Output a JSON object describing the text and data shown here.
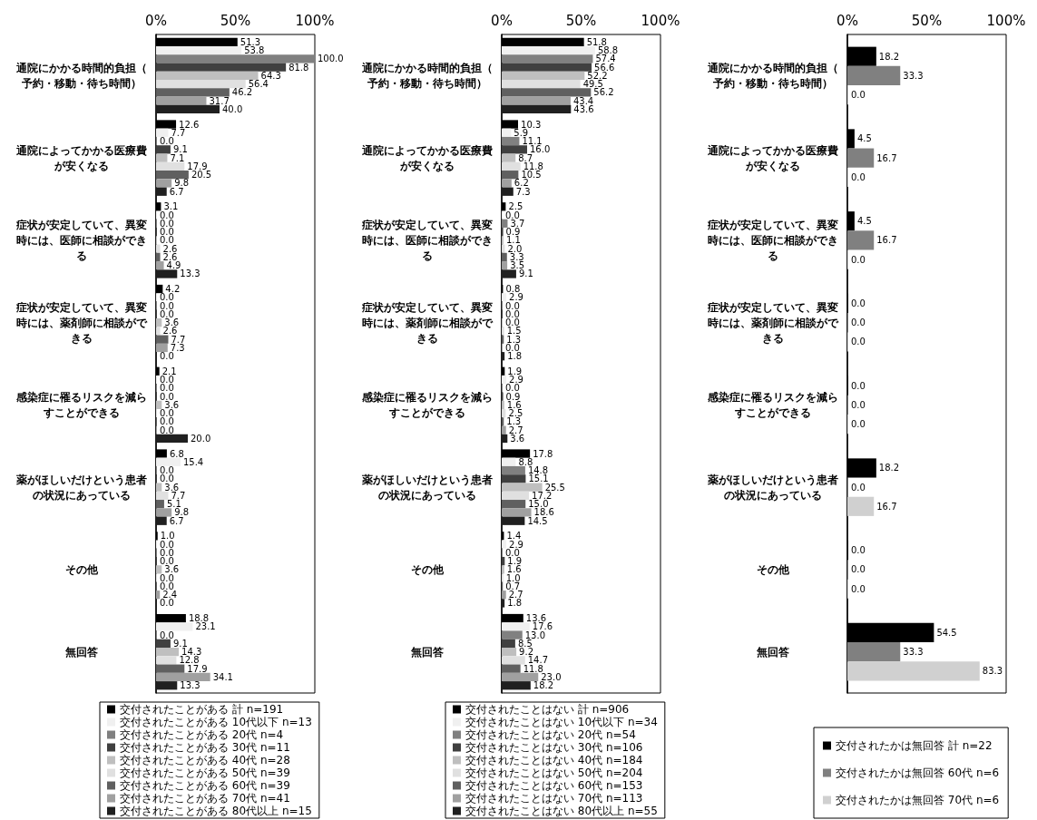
{
  "chart_data": [
    {
      "type": "bar",
      "orientation": "horizontal",
      "categories": [
        "通院にかかる時間的負担（予約・移動・待ち時間）",
        "通院によってかかる医療費が安くなる",
        "症状が安定していて、異変時には、医師に相談ができる",
        "症状が安定していて、異変時には、薬剤師に相談ができる",
        "感染症に罹るリスクを減らすことができる",
        "薬がほしいだけという患者の状況にあっている",
        "その他",
        "無回答"
      ],
      "xlim": [
        0,
        100
      ],
      "xticks": [
        {
          "value": 0,
          "label": "0%"
        },
        {
          "value": 50,
          "label": "50%"
        },
        {
          "value": 100,
          "label": "100%"
        }
      ],
      "grid": false,
      "legend": "bottom",
      "series": [
        {
          "name": "交付されたことがある 計 n=191",
          "color": "#000000",
          "values": [
            51.3,
            12.6,
            3.1,
            4.2,
            2.1,
            6.8,
            1.0,
            18.8
          ],
          "value_labels": [
            "51.3",
            "12.6",
            "3.1",
            "4.2",
            "2.1",
            "6.8",
            "1.0",
            "18.8"
          ]
        },
        {
          "name": "交付されたことがある 10代以下 n=13",
          "color": "#f0f0f0",
          "values": [
            53.8,
            7.7,
            0.0,
            0.0,
            0.0,
            15.4,
            0.0,
            23.1
          ],
          "value_labels": [
            "53.8",
            "7.7",
            "0.0",
            "0.0",
            "0.0",
            "15.4",
            "0.0",
            "23.1"
          ]
        },
        {
          "name": "交付されたことがある 20代 n=4",
          "color": "#808080",
          "values": [
            100.0,
            0.0,
            0.0,
            0.0,
            0.0,
            0.0,
            0.0,
            0.0
          ],
          "value_labels": [
            "100.0",
            "0.0",
            "0.0",
            "0.0",
            "0.0",
            "0.0",
            "0.0",
            "0.0"
          ]
        },
        {
          "name": "交付されたことがある 30代 n=11",
          "color": "#404040",
          "values": [
            81.8,
            9.1,
            0.0,
            0.0,
            0.0,
            0.0,
            0.0,
            9.1
          ],
          "value_labels": [
            "81.8",
            "9.1",
            "0.0",
            "0.0",
            "0.0",
            "0.0",
            "0.0",
            "9.1"
          ]
        },
        {
          "name": "交付されたことがある 40代 n=28",
          "color": "#bfbfbf",
          "values": [
            64.3,
            7.1,
            0.0,
            3.6,
            3.6,
            3.6,
            3.6,
            14.3
          ],
          "value_labels": [
            "64.3",
            "7.1",
            "0.0",
            "3.6",
            "3.6",
            "3.6",
            "3.6",
            "14.3"
          ]
        },
        {
          "name": "交付されたことがある 50代 n=39",
          "color": "#e0e0e0",
          "values": [
            56.4,
            17.9,
            2.6,
            2.6,
            0.0,
            7.7,
            0.0,
            12.8
          ],
          "value_labels": [
            "56.4",
            "17.9",
            "2.6",
            "2.6",
            "0.0",
            "7.7",
            "0.0",
            "12.8"
          ]
        },
        {
          "name": "交付されたことがある 60代 n=39",
          "color": "#606060",
          "values": [
            46.2,
            20.5,
            2.6,
            7.7,
            0.0,
            5.1,
            0.0,
            17.9
          ],
          "value_labels": [
            "46.2",
            "20.5",
            "2.6",
            "7.7",
            "0.0",
            "5.1",
            "0.0",
            "17.9"
          ]
        },
        {
          "name": "交付されたことがある 70代 n=41",
          "color": "#a0a0a0",
          "values": [
            31.7,
            9.8,
            4.9,
            7.3,
            0.0,
            9.8,
            2.4,
            34.1
          ],
          "value_labels": [
            "31.7",
            "9.8",
            "4.9",
            "7.3",
            "0.0",
            "9.8",
            "2.4",
            "34.1"
          ]
        },
        {
          "name": "交付されたことがある 80代以上 n=15",
          "color": "#202020",
          "values": [
            40.0,
            6.7,
            13.3,
            0.0,
            20.0,
            6.7,
            0.0,
            13.3
          ],
          "value_labels": [
            "40.0",
            "6.7",
            "13.3",
            "0.0",
            "20.0",
            "6.7",
            "0.0",
            "13.3"
          ]
        }
      ]
    },
    {
      "type": "bar",
      "orientation": "horizontal",
      "categories": [
        "通院にかかる時間的負担（予約・移動・待ち時間）",
        "通院によってかかる医療費が安くなる",
        "症状が安定していて、異変時には、医師に相談ができる",
        "症状が安定していて、異変時には、薬剤師に相談ができる",
        "感染症に罹るリスクを減らすことができる",
        "薬がほしいだけという患者の状況にあっている",
        "その他",
        "無回答"
      ],
      "xlim": [
        0,
        100
      ],
      "xticks": [
        {
          "value": 0,
          "label": "0%"
        },
        {
          "value": 50,
          "label": "50%"
        },
        {
          "value": 100,
          "label": "100%"
        }
      ],
      "grid": false,
      "legend": "bottom",
      "series": [
        {
          "name": "交付されたことはない 計 n=906",
          "color": "#000000",
          "values": [
            51.8,
            10.3,
            2.5,
            0.8,
            1.9,
            17.8,
            1.4,
            13.6
          ],
          "value_labels": [
            "51.8",
            "10.3",
            "2.5",
            "0.8",
            "1.9",
            "17.8",
            "1.4",
            "13.6"
          ]
        },
        {
          "name": "交付されたことはない 10代以下 n=34",
          "color": "#f0f0f0",
          "values": [
            58.8,
            5.9,
            0.0,
            2.9,
            2.9,
            8.8,
            2.9,
            17.6
          ],
          "value_labels": [
            "58.8",
            "5.9",
            "0.0",
            "2.9",
            "2.9",
            "8.8",
            "2.9",
            "17.6"
          ]
        },
        {
          "name": "交付されたことはない 20代 n=54",
          "color": "#808080",
          "values": [
            57.4,
            11.1,
            3.7,
            0.0,
            0.0,
            14.8,
            0.0,
            13.0
          ],
          "value_labels": [
            "57.4",
            "11.1",
            "3.7",
            "0.0",
            "0.0",
            "14.8",
            "0.0",
            "13.0"
          ]
        },
        {
          "name": "交付されたことはない 30代 n=106",
          "color": "#404040",
          "values": [
            56.6,
            16.0,
            0.9,
            0.0,
            0.9,
            15.1,
            1.9,
            8.5
          ],
          "value_labels": [
            "56.6",
            "16.0",
            "0.9",
            "0.0",
            "0.9",
            "15.1",
            "1.9",
            "8.5"
          ]
        },
        {
          "name": "交付されたことはない 40代 n=184",
          "color": "#bfbfbf",
          "values": [
            52.2,
            8.7,
            1.1,
            0.0,
            1.6,
            25.5,
            1.6,
            9.2
          ],
          "value_labels": [
            "52.2",
            "8.7",
            "1.1",
            "0.0",
            "1.6",
            "25.5",
            "1.6",
            "9.2"
          ]
        },
        {
          "name": "交付されたことはない 50代 n=204",
          "color": "#e0e0e0",
          "values": [
            49.5,
            11.8,
            2.0,
            1.5,
            2.5,
            17.2,
            1.0,
            14.7
          ],
          "value_labels": [
            "49.5",
            "11.8",
            "2.0",
            "1.5",
            "2.5",
            "17.2",
            "1.0",
            "14.7"
          ]
        },
        {
          "name": "交付されたことはない 60代 n=153",
          "color": "#606060",
          "values": [
            56.2,
            10.5,
            3.3,
            1.3,
            1.3,
            15.0,
            0.7,
            11.8
          ],
          "value_labels": [
            "56.2",
            "10.5",
            "3.3",
            "1.3",
            "1.3",
            "15.0",
            "0.7",
            "11.8"
          ]
        },
        {
          "name": "交付されたことはない 70代 n=113",
          "color": "#a0a0a0",
          "values": [
            43.4,
            6.2,
            3.5,
            0.0,
            2.7,
            18.6,
            2.7,
            23.0
          ],
          "value_labels": [
            "43.4",
            "6.2",
            "3.5",
            "0.0",
            "2.7",
            "18.6",
            "2.7",
            "23.0"
          ]
        },
        {
          "name": "交付されたことはない 80代以上 n=55",
          "color": "#202020",
          "values": [
            43.6,
            7.3,
            9.1,
            1.8,
            3.6,
            14.5,
            1.8,
            18.2
          ],
          "value_labels": [
            "43.6",
            "7.3",
            "9.1",
            "1.8",
            "3.6",
            "14.5",
            "1.8",
            "18.2"
          ]
        }
      ]
    },
    {
      "type": "bar",
      "orientation": "horizontal",
      "categories": [
        "通院にかかる時間的負担（予約・移動・待ち時間）",
        "通院によってかかる医療費が安くなる",
        "症状が安定していて、異変時には、医師に相談ができる",
        "症状が安定していて、異変時には、薬剤師に相談ができる",
        "感染症に罹るリスクを減らすことができる",
        "薬がほしいだけという患者の状況にあっている",
        "その他",
        "無回答"
      ],
      "xlim": [
        0,
        100
      ],
      "xticks": [
        {
          "value": 0,
          "label": "0%"
        },
        {
          "value": 50,
          "label": "50%"
        },
        {
          "value": 100,
          "label": "100%"
        }
      ],
      "grid": false,
      "legend": "bottom",
      "series": [
        {
          "name": "交付されたかは無回答 計 n=22",
          "color": "#000000",
          "values": [
            18.2,
            4.5,
            4.5,
            0.0,
            0.0,
            18.2,
            0.0,
            54.5
          ],
          "value_labels": [
            "18.2",
            "4.5",
            "4.5",
            "0.0",
            "0.0",
            "18.2",
            "0.0",
            "54.5"
          ]
        },
        {
          "name": "交付されたかは無回答 60代 n=6",
          "color": "#808080",
          "values": [
            33.3,
            16.7,
            16.7,
            0.0,
            0.0,
            0.0,
            0.0,
            33.3
          ],
          "value_labels": [
            "33.3",
            "16.7",
            "16.7",
            "0.0",
            "0.0",
            "0.0",
            "0.0",
            "33.3"
          ]
        },
        {
          "name": "交付されたかは無回答 70代 n=6",
          "color": "#d0d0d0",
          "values": [
            0.0,
            0.0,
            0.0,
            0.0,
            0.0,
            16.7,
            0.0,
            83.3
          ],
          "value_labels": [
            "0.0",
            "0.0",
            "0.0",
            "0.0",
            "0.0",
            "16.7",
            "0.0",
            "83.3"
          ]
        }
      ]
    }
  ]
}
